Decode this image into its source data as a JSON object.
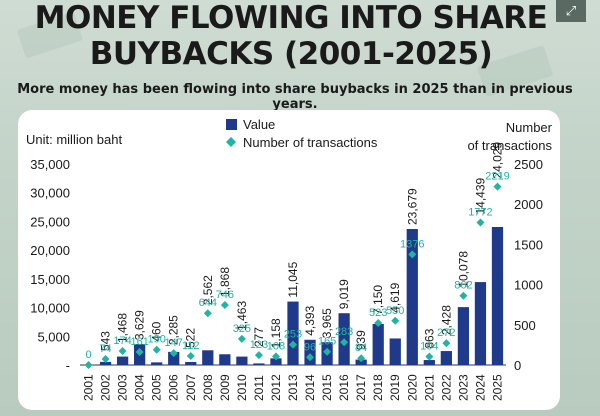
{
  "title_line1": "MONEY FLOWING INTO SHARE",
  "title_line2": "BUYBACKS (2001-2025)",
  "subtitle": "More money has been flowing into share buybacks in 2025 than in previous years.",
  "expand_icon": "expand-icon",
  "colors": {
    "bar": "#1f3a8a",
    "marker": "#1eb5a5",
    "text": "#1a1a1a"
  },
  "chart_data": {
    "type": "bar",
    "unit_label": "Unit: million baht",
    "right_axis_label_line1": "Number",
    "right_axis_label_line2": "of transactions",
    "legend": [
      "Value",
      "Number of transactions"
    ],
    "categories": [
      "2001",
      "2002",
      "2003",
      "2004",
      "2005",
      "2006",
      "2007",
      "2008",
      "2009",
      "2010",
      "2011",
      "2012",
      "2013",
      "2014",
      "2015",
      "2016",
      "2017",
      "2018",
      "2019",
      "2020",
      "2021",
      "2022",
      "2023",
      "2024",
      "2025"
    ],
    "series": [
      {
        "name": "Value",
        "axis": "left",
        "values": [
          0,
          543,
          1468,
          3629,
          460,
          2285,
          522,
          2562,
          1868,
          1463,
          277,
          1158,
          11045,
          4393,
          3965,
          9019,
          939,
          7150,
          4619,
          23679,
          863,
          2428,
          10078,
          14439,
          24029
        ],
        "labels": [
          "",
          "543",
          "1,468",
          "3,629",
          "460",
          "2,285",
          "522",
          "2,562",
          "1,868",
          "1,463",
          "277",
          "1,158",
          "11,045",
          "4,393",
          "3,965",
          "9,019",
          "939",
          "7,150",
          "4,619",
          "23,679",
          "863",
          "2,428",
          "10,078",
          "14,439",
          "24,029"
        ]
      },
      {
        "name": "Number of transactions",
        "axis": "right",
        "values": [
          0,
          74,
          174,
          161,
          190,
          147,
          112,
          644,
          746,
          325,
          123,
          108,
          253,
          96,
          165,
          283,
          84,
          523,
          550,
          1376,
          104,
          272,
          862,
          1772,
          2219
        ],
        "labels": [
          "0",
          "74",
          "174",
          "161",
          "190",
          "147",
          "112",
          "644",
          "746",
          "325",
          "123",
          "108",
          "253",
          "96",
          "165",
          "283",
          "84",
          "523",
          "550",
          "1376",
          "104",
          "272",
          "862",
          "1772",
          "2219"
        ]
      }
    ],
    "left_ticks": [
      "35,000",
      "30,000",
      "25,000",
      "20,000",
      "15,000",
      "10,000",
      "5,000",
      "-"
    ],
    "left_tick_values": [
      35000,
      30000,
      25000,
      20000,
      15000,
      10000,
      5000,
      0
    ],
    "right_ticks": [
      "2500",
      "2000",
      "1500",
      "1000",
      "500",
      "0"
    ],
    "right_tick_values": [
      2500,
      2000,
      1500,
      1000,
      500,
      0
    ],
    "ylim_left": [
      0,
      35000
    ],
    "ylim_right": [
      0,
      2500
    ],
    "grid": false,
    "legend_position": "top-center"
  }
}
